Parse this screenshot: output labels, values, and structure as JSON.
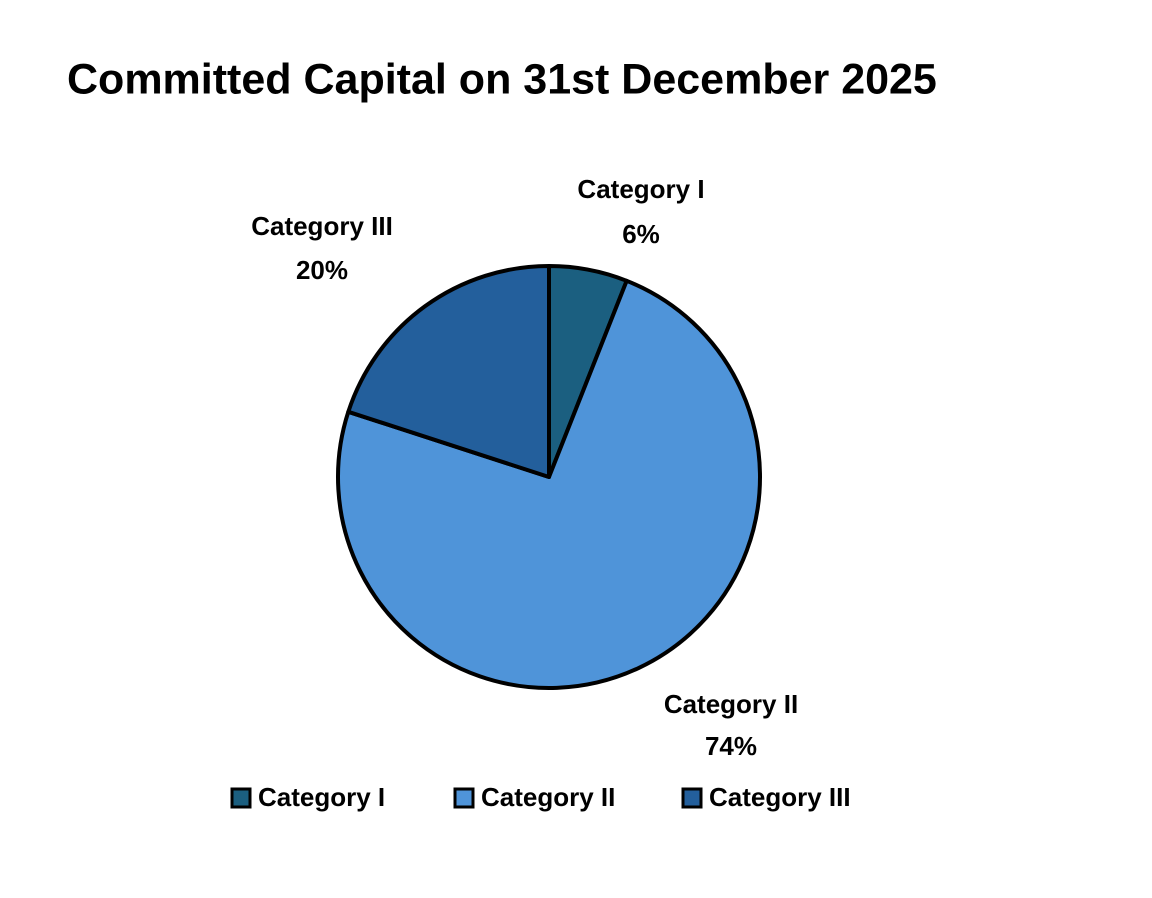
{
  "chart_data": {
    "type": "pie",
    "title": "Committed Capital on 31st December 2025",
    "categories": [
      "Category I",
      "Category II",
      "Category III"
    ],
    "values": [
      6,
      74,
      20
    ],
    "value_labels": [
      "6%",
      "74%",
      "20%"
    ],
    "colors": [
      "#1b5f80",
      "#4f94d9",
      "#235f9c"
    ],
    "legend": "bottom"
  }
}
